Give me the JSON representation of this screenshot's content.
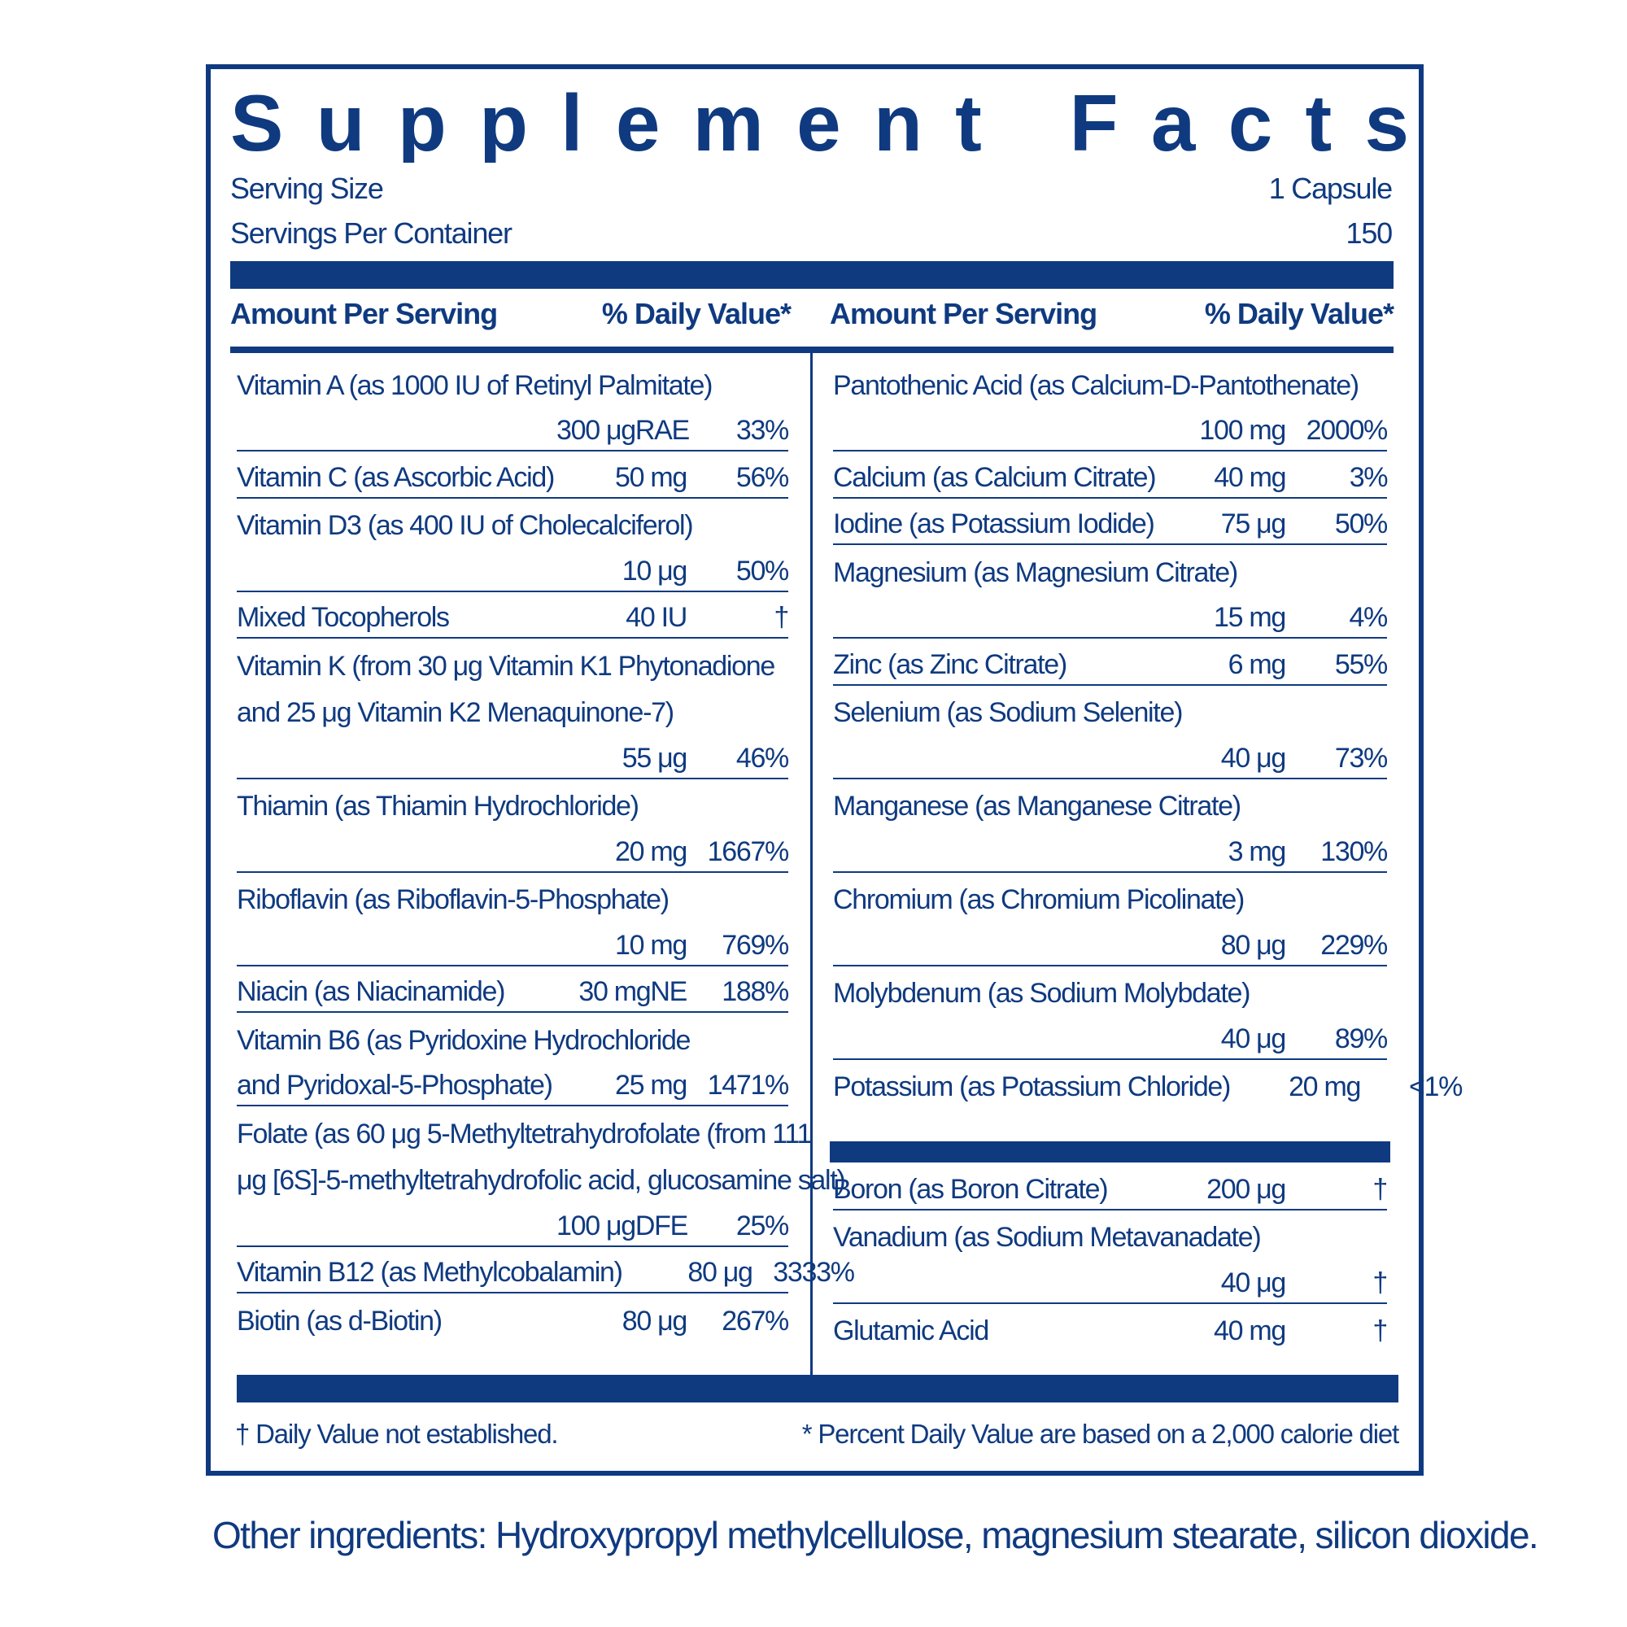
{
  "title": "Supplement Facts",
  "serving": [
    {
      "label": "Serving Size",
      "value": "1 Capsule"
    },
    {
      "label": "Servings Per Container",
      "value": "150"
    }
  ],
  "header": {
    "amount": "Amount Per Serving",
    "dv": "% Daily Value*"
  },
  "left": [
    {
      "lines": [
        "Vitamin A (as 1000 IU of Retinyl Palmitate)"
      ],
      "amount": "300 μgRAE",
      "dv": "33%"
    },
    {
      "lines": [
        "Vitamin C (as Ascorbic Acid)"
      ],
      "amount": "50 mg",
      "dv": "56%"
    },
    {
      "lines": [
        "Vitamin D3 (as 400 IU of Cholecalciferol)"
      ],
      "amount": "10 μg",
      "dv": "50%"
    },
    {
      "lines": [
        "Mixed Tocopherols"
      ],
      "amount": "40 IU",
      "dv": "†"
    },
    {
      "lines": [
        "Vitamin K (from 30 μg Vitamin K1 Phytonadione",
        "and 25 μg Vitamin K2 Menaquinone-7)"
      ],
      "amount": "55 μg",
      "dv": "46%"
    },
    {
      "lines": [
        "Thiamin (as Thiamin Hydrochloride)"
      ],
      "amount": "20 mg",
      "dv": "1667%"
    },
    {
      "lines": [
        "Riboflavin (as Riboflavin-5-Phosphate)"
      ],
      "amount": "10 mg",
      "dv": "769%"
    },
    {
      "lines": [
        "Niacin (as Niacinamide)"
      ],
      "amount": "30 mgNE",
      "dv": "188%"
    },
    {
      "lines": [
        "Vitamin B6 (as Pyridoxine Hydrochloride",
        "and Pyridoxal-5-Phosphate)"
      ],
      "amount": "25 mg",
      "dv": "1471%"
    },
    {
      "lines": [
        "Folate (as 60 μg 5-Methyltetrahydrofolate (from 111",
        "μg [6S]-5-methyltetrahydrofolic acid, glucosamine salt)"
      ],
      "amount": "100 μgDFE",
      "dv": "25%"
    },
    {
      "lines": [
        "Vitamin B12 (as Methylcobalamin)"
      ],
      "amount": "80 μg",
      "dv": "3333%"
    },
    {
      "lines": [
        "Biotin (as d-Biotin)"
      ],
      "amount": "80 μg",
      "dv": "267%"
    }
  ],
  "right": [
    {
      "lines": [
        "Pantothenic Acid (as Calcium-D-Pantothenate)"
      ],
      "amount": "100 mg",
      "dv": "2000%"
    },
    {
      "lines": [
        "Calcium (as Calcium Citrate)"
      ],
      "amount": "40 mg",
      "dv": "3%"
    },
    {
      "lines": [
        "Iodine (as Potassium Iodide)"
      ],
      "amount": "75 μg",
      "dv": "50%"
    },
    {
      "lines": [
        "Magnesium (as Magnesium Citrate)"
      ],
      "amount": "15 mg",
      "dv": "4%"
    },
    {
      "lines": [
        "Zinc (as Zinc Citrate)"
      ],
      "amount": "6 mg",
      "dv": "55%"
    },
    {
      "lines": [
        "Selenium (as Sodium Selenite)"
      ],
      "amount": "40 μg",
      "dv": "73%"
    },
    {
      "lines": [
        "Manganese (as Manganese Citrate)"
      ],
      "amount": "3 mg",
      "dv": "130%"
    },
    {
      "lines": [
        "Chromium (as Chromium Picolinate)"
      ],
      "amount": "80 μg",
      "dv": "229%"
    },
    {
      "lines": [
        "Molybdenum (as Sodium Molybdate)"
      ],
      "amount": "40 μg",
      "dv": "89%"
    },
    {
      "lines": [
        "Potassium (as Potassium Chloride)"
      ],
      "amount": "20 mg",
      "dv": "<1%"
    }
  ],
  "right_extra": [
    {
      "lines": [
        "Boron (as Boron Citrate)"
      ],
      "amount": "200 μg",
      "dv": "†"
    },
    {
      "lines": [
        "Vanadium (as Sodium Metavanadate)"
      ],
      "amount": "40 μg",
      "dv": "†"
    },
    {
      "lines": [
        "Glutamic Acid"
      ],
      "amount": "40 mg",
      "dv": "†"
    }
  ],
  "footnotes": [
    "† Daily Value not established.",
    "* Percent Daily Value are based on a 2,000 calorie diet"
  ],
  "other_ingredients": "Other ingredients: Hydroxypropyl methylcellulose, magnesium stearate, silicon dioxide."
}
